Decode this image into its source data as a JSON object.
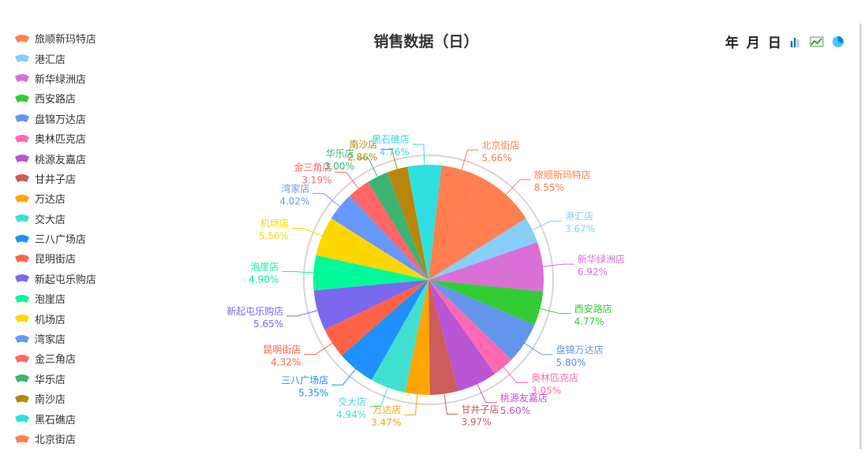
{
  "title": "销售数据（日）",
  "toolbar": {
    "year_label": "年",
    "month_label": "月",
    "day_label": "日",
    "icons": [
      "bar-chart-icon",
      "line-chart-icon",
      "pie-chart-icon"
    ]
  },
  "chart_data": {
    "type": "pie",
    "title": "销售数据（日）",
    "legend_position": "left",
    "series": [
      {
        "name": "旅顺新玛特店",
        "value": 8.55,
        "label": "8.55%",
        "color": "#ff7f50"
      },
      {
        "name": "港汇店",
        "value": 3.67,
        "label": "3.67%",
        "color": "#87cefa"
      },
      {
        "name": "新华绿洲店",
        "value": 6.92,
        "label": "6.92%",
        "color": "#da70d6"
      },
      {
        "name": "西安路店",
        "value": 4.77,
        "label": "4.77%",
        "color": "#32cd32"
      },
      {
        "name": "盘锦万达店",
        "value": 5.8,
        "label": "5.80%",
        "color": "#6495ed"
      },
      {
        "name": "奥林匹克店",
        "value": 3.05,
        "label": "3.05%",
        "color": "#ff69b4"
      },
      {
        "name": "桃源友嘉店",
        "value": 5.6,
        "label": "5.60%",
        "color": "#ba55d3"
      },
      {
        "name": "甘井子店",
        "value": 3.97,
        "label": "3.97%",
        "color": "#cd5c5c"
      },
      {
        "name": "万达店",
        "value": 3.47,
        "label": "3.47%",
        "color": "#ffa500"
      },
      {
        "name": "交大店",
        "value": 4.94,
        "label": "4.94%",
        "color": "#40e0d0"
      },
      {
        "name": "三八广场店",
        "value": 5.35,
        "label": "5.35%",
        "color": "#1e90ff"
      },
      {
        "name": "昆明街店",
        "value": 4.32,
        "label": "4.32%",
        "color": "#ff6347"
      },
      {
        "name": "新起屯乐购店",
        "value": 5.65,
        "label": "5.65%",
        "color": "#7b68ee"
      },
      {
        "name": "泡崖店",
        "value": 4.9,
        "label": "4.90%",
        "color": "#00fa9a"
      },
      {
        "name": "机场店",
        "value": 5.56,
        "label": "5.56%",
        "color": "#ffd700"
      },
      {
        "name": "湾家店",
        "value": 4.02,
        "label": "4.02%",
        "color": "#6699ff"
      },
      {
        "name": "金三角店",
        "value": 3.19,
        "label": "3.19%",
        "color": "#ff6666"
      },
      {
        "name": "华乐店",
        "value": 3.0,
        "label": "3.00%",
        "color": "#3cb371"
      },
      {
        "name": "南沙店",
        "value": 2.86,
        "label": "2.86%",
        "color": "#b8860b"
      },
      {
        "name": "黑石礁店",
        "value": 4.76,
        "label": "4.76%",
        "color": "#30e0e0"
      },
      {
        "name": "北京街店",
        "value": 5.66,
        "label": "5.66%",
        "color": "#ff7f50"
      }
    ]
  }
}
